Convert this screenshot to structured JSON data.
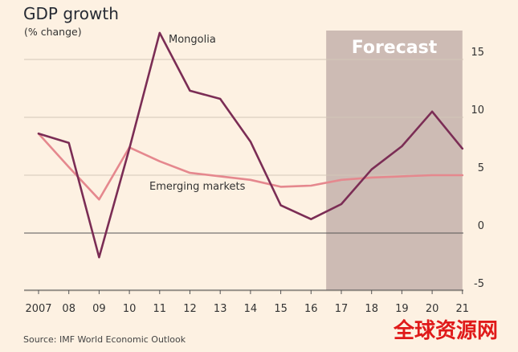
{
  "chart_data": {
    "type": "line",
    "title": "GDP growth",
    "subtitle": "(% change)",
    "xlabel": "",
    "ylabel": "",
    "categories": [
      "2007",
      "08",
      "09",
      "10",
      "11",
      "12",
      "13",
      "14",
      "15",
      "16",
      "17",
      "18",
      "19",
      "20",
      "21"
    ],
    "x": [
      2007,
      2008,
      2009,
      2010,
      2011,
      2012,
      2013,
      2014,
      2015,
      2016,
      2017,
      2018,
      2019,
      2020,
      2021
    ],
    "ylim": [
      -5,
      17.5
    ],
    "yticks": [
      -5,
      0,
      5,
      10,
      15
    ],
    "grid": "horizontal",
    "axis_side": "right",
    "forecast": {
      "label": "Forecast",
      "from": 2016.5,
      "to": 2021
    },
    "series": [
      {
        "name": "Mongolia",
        "color": "#7b2d55",
        "values": [
          8.6,
          7.8,
          -2.1,
          7.3,
          17.3,
          12.3,
          11.6,
          7.9,
          2.4,
          1.2,
          2.5,
          5.5,
          7.5,
          10.5,
          7.3
        ]
      },
      {
        "name": "Emerging markets",
        "color": "#e5888e",
        "values": [
          8.6,
          5.7,
          2.9,
          7.4,
          6.2,
          5.2,
          4.9,
          4.6,
          4.0,
          4.1,
          4.6,
          4.8,
          4.9,
          5.0,
          5.0
        ]
      }
    ],
    "source": "Source: IMF World Economic Outlook",
    "watermark": "全球资源网"
  }
}
